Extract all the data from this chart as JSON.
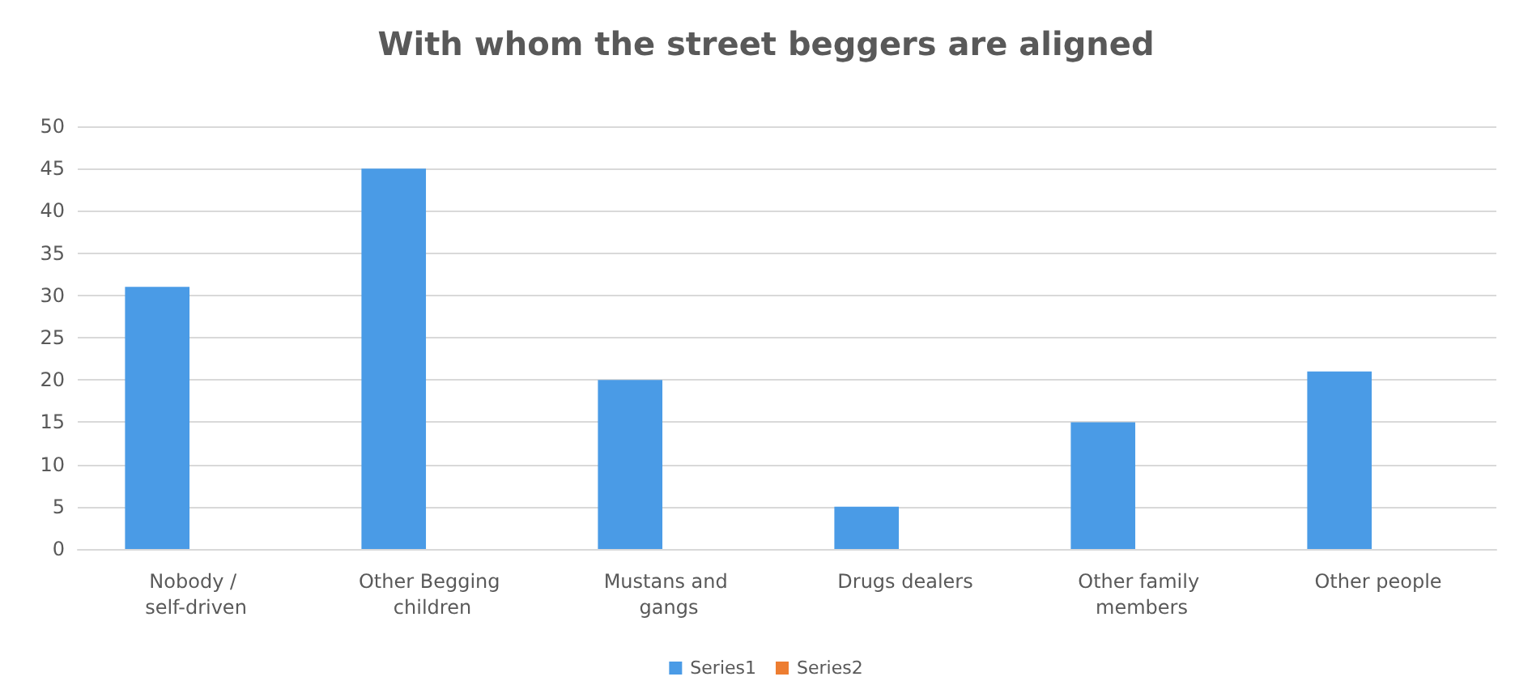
{
  "chart_data": {
    "type": "bar",
    "title": "With whom the street beggers are aligned",
    "categories": [
      "Nobody / self-driven",
      "Other Begging children",
      "Mustans and gangs",
      "Drugs dealers",
      "Other family members",
      "Other people"
    ],
    "series": [
      {
        "name": "Series1",
        "color": "#4a9be6",
        "values": [
          31,
          45,
          20,
          5,
          15,
          21
        ]
      },
      {
        "name": "Series2",
        "color": "#ed7d31",
        "values": [
          0,
          0,
          0,
          0,
          0,
          0
        ]
      }
    ],
    "ylim": [
      0,
      50
    ],
    "yticks": [
      0,
      5,
      10,
      15,
      20,
      25,
      30,
      35,
      40,
      45,
      50
    ],
    "grid": "y",
    "legend": "bottom"
  }
}
